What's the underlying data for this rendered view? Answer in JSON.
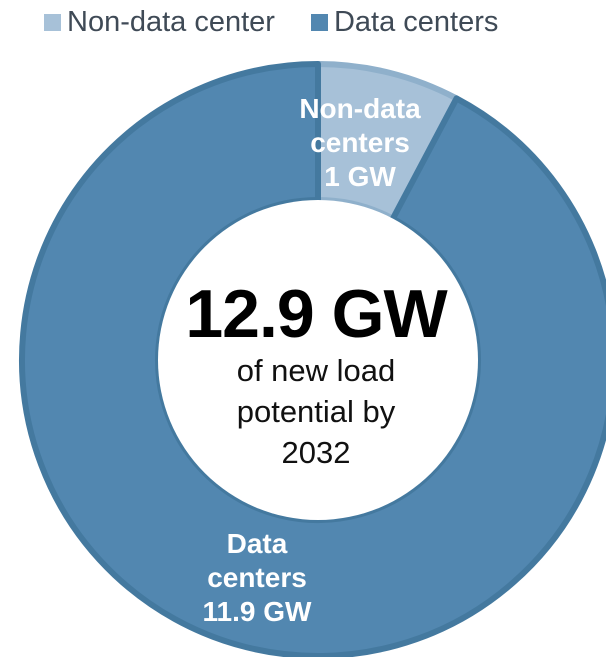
{
  "chart_data": {
    "type": "pie",
    "categories": [
      "Non-data center",
      "Data centers"
    ],
    "values": [
      1,
      11.9
    ],
    "unit": "GW",
    "legend": {
      "position": "top",
      "entries": [
        "Non-data center",
        "Data centers"
      ]
    },
    "slice_labels": [
      {
        "lines": [
          "Non-data",
          "centers",
          "1 GW"
        ]
      },
      {
        "lines": [
          "Data",
          "centers",
          "11.9 GW"
        ]
      }
    ],
    "center": {
      "value": "12.9 GW",
      "caption_lines": [
        "of new load",
        "potential by",
        "2032"
      ]
    },
    "colors": [
      "#a7c1d8",
      "#5287b0"
    ],
    "edge_colors": [
      "#8fb0cb",
      "#44799f"
    ]
  }
}
